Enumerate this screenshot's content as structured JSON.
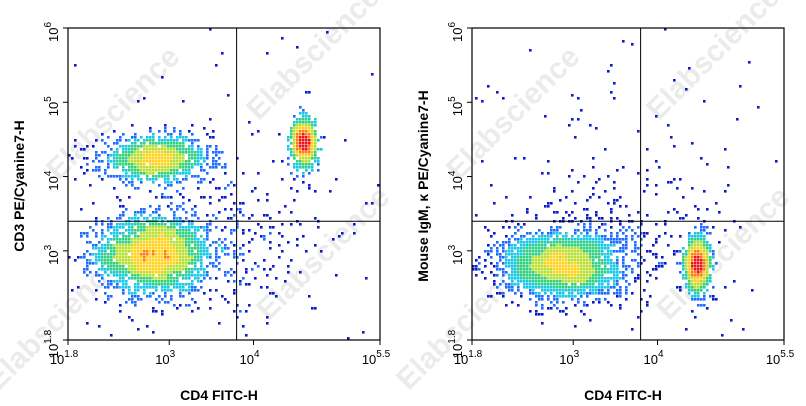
{
  "watermark": "Elabscience",
  "colors": {
    "density_scale": [
      "#0a1ac8",
      "#1e6bff",
      "#18c8e6",
      "#30d080",
      "#b8e030",
      "#ffd21e",
      "#ff7a14",
      "#e8141a"
    ],
    "gate_line": "#000000",
    "frame": "#000000"
  },
  "chart_data": [
    {
      "type": "scatter",
      "subtype": "flow-cytometry-density-dot-plot",
      "xlabel": "CD4 FITC-H",
      "ylabel": "CD3 PE/Cyanine7-H",
      "x_scale": "log",
      "y_scale": "log",
      "xlim": [
        63,
        316228
      ],
      "ylim": [
        63,
        1000000
      ],
      "x_ticks": [
        {
          "value": 63,
          "base": "10",
          "exp": "1.8"
        },
        {
          "value": 1000,
          "base": "10",
          "exp": "3"
        },
        {
          "value": 10000,
          "base": "10",
          "exp": "4"
        },
        {
          "value": 316228,
          "base": "10",
          "exp": "5.5"
        }
      ],
      "y_ticks": [
        {
          "value": 63,
          "base": "10",
          "exp": "1.8"
        },
        {
          "value": 1000,
          "base": "10",
          "exp": "3"
        },
        {
          "value": 10000,
          "base": "10",
          "exp": "4"
        },
        {
          "value": 100000,
          "base": "10",
          "exp": "5"
        },
        {
          "value": 1000000,
          "base": "10",
          "exp": "6"
        }
      ],
      "quadrant_gate": {
        "x": 6300,
        "y": 2500
      },
      "populations": [
        {
          "center": [
            650,
            900
          ],
          "spread_decades": [
            0.33,
            0.26
          ],
          "count": 2200
        },
        {
          "center": [
            700,
            17000
          ],
          "spread_decades": [
            0.32,
            0.15
          ],
          "count": 1100
        },
        {
          "center": [
            40000,
            28000
          ],
          "spread_decades": [
            0.07,
            0.17
          ],
          "count": 650
        },
        {
          "center": [
            4000,
            1000
          ],
          "spread_decades": [
            0.6,
            0.5
          ],
          "count": 260
        },
        {
          "center": [
            8000,
            8000
          ],
          "spread_decades": [
            1.1,
            1.1
          ],
          "count": 120
        }
      ],
      "grid": false,
      "legend": "none"
    },
    {
      "type": "scatter",
      "subtype": "flow-cytometry-density-dot-plot",
      "xlabel": "CD4 FITC-H",
      "ylabel": "Mouse IgM, κ PE/Cyanine7-H",
      "x_scale": "log",
      "y_scale": "log",
      "xlim": [
        63,
        316228
      ],
      "ylim": [
        63,
        1000000
      ],
      "x_ticks": [
        {
          "value": 63,
          "base": "10",
          "exp": "1.8"
        },
        {
          "value": 1000,
          "base": "10",
          "exp": "3"
        },
        {
          "value": 10000,
          "base": "10",
          "exp": "4"
        },
        {
          "value": 316228,
          "base": "10",
          "exp": "5.5"
        }
      ],
      "y_ticks": [
        {
          "value": 63,
          "base": "10",
          "exp": "1.8"
        },
        {
          "value": 1000,
          "base": "10",
          "exp": "3"
        },
        {
          "value": 10000,
          "base": "10",
          "exp": "4"
        },
        {
          "value": 100000,
          "base": "10",
          "exp": "5"
        },
        {
          "value": 1000000,
          "base": "10",
          "exp": "6"
        }
      ],
      "quadrant_gate": {
        "x": 6300,
        "y": 2500
      },
      "populations": [
        {
          "center": [
            750,
            650
          ],
          "spread_decades": [
            0.35,
            0.22
          ],
          "count": 2600
        },
        {
          "center": [
            30000,
            650
          ],
          "spread_decades": [
            0.07,
            0.19
          ],
          "count": 1100
        },
        {
          "center": [
            3000,
            1200
          ],
          "spread_decades": [
            0.7,
            0.45
          ],
          "count": 260
        },
        {
          "center": [
            5000,
            6000
          ],
          "spread_decades": [
            1.2,
            1.0
          ],
          "count": 130
        }
      ],
      "grid": false,
      "legend": "none"
    }
  ]
}
